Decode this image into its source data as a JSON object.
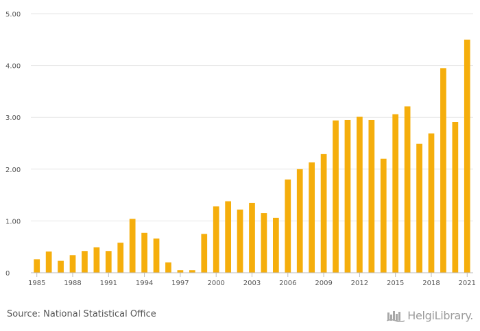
{
  "chart_data": {
    "type": "bar",
    "title": "",
    "xlabel": "",
    "ylabel": "",
    "ylim": [
      0,
      5
    ],
    "grid": true,
    "bar_color": "#f5ae0c",
    "y_ticks": [
      {
        "value": 0,
        "label": "0"
      },
      {
        "value": 1,
        "label": "1.00"
      },
      {
        "value": 2,
        "label": "2.00"
      },
      {
        "value": 3,
        "label": "3.00"
      },
      {
        "value": 4,
        "label": "4.00"
      },
      {
        "value": 5,
        "label": "5.00"
      }
    ],
    "x_tick_labels": [
      "1985",
      "1988",
      "1991",
      "1994",
      "1997",
      "2000",
      "2003",
      "2006",
      "2009",
      "2012",
      "2015",
      "2018",
      "2021"
    ],
    "categories": [
      "1985",
      "1986",
      "1987",
      "1988",
      "1989",
      "1990",
      "1991",
      "1992",
      "1993",
      "1994",
      "1995",
      "1996",
      "1997",
      "1998",
      "1999",
      "2000",
      "2001",
      "2002",
      "2003",
      "2004",
      "2005",
      "2006",
      "2007",
      "2008",
      "2009",
      "2010",
      "2011",
      "2012",
      "2013",
      "2014",
      "2015",
      "2016",
      "2017",
      "2018",
      "2019",
      "2020",
      "2021"
    ],
    "values": [
      0.26,
      0.41,
      0.23,
      0.34,
      0.42,
      0.49,
      0.42,
      0.58,
      1.04,
      0.77,
      0.66,
      0.2,
      0.05,
      0.05,
      0.75,
      1.28,
      1.38,
      1.22,
      1.35,
      1.15,
      1.06,
      1.8,
      2.0,
      2.13,
      2.29,
      2.94,
      2.95,
      3.01,
      2.95,
      2.2,
      3.06,
      3.21,
      2.49,
      2.69,
      3.95,
      2.91,
      4.5
    ]
  },
  "footer": {
    "source": "Source: National Statistical Office",
    "brand": "HelgiLibrary."
  }
}
